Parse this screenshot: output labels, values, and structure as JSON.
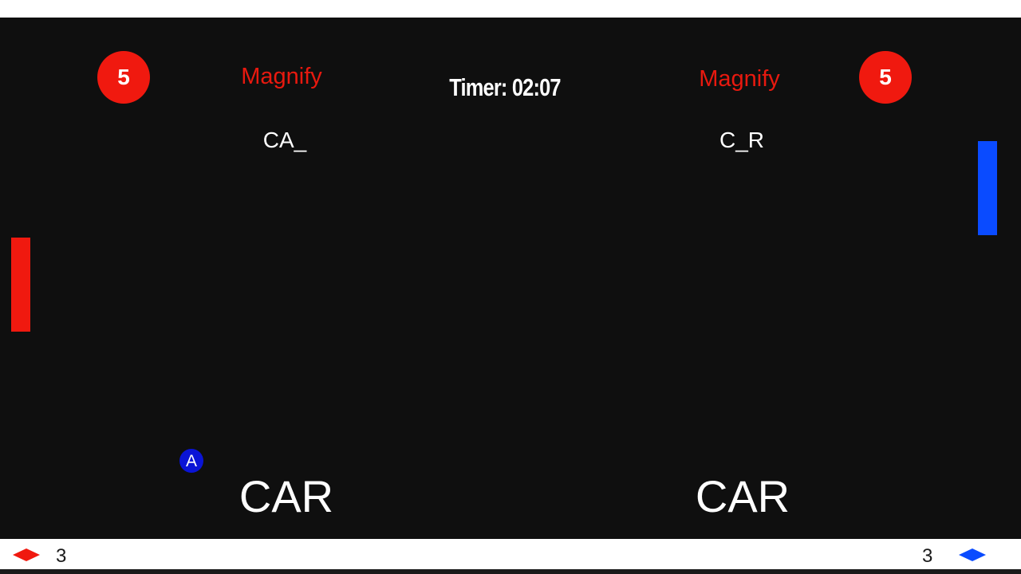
{
  "player_left": {
    "score": "5",
    "powerup": "Magnify",
    "word_progress": "CA_",
    "target_word": "CAR",
    "lives": "3",
    "color": "#f0190f"
  },
  "player_right": {
    "score": "5",
    "powerup": "Magnify",
    "word_progress": "C_R",
    "target_word": "CAR",
    "lives": "3",
    "color": "#0a4bff"
  },
  "timer": {
    "label": "Timer:",
    "value": "02:07"
  },
  "ball": {
    "letter": "A",
    "color": "#0a14d6"
  },
  "icons": {
    "left_life": "red-diamond-icon",
    "right_life": "blue-diamond-icon"
  },
  "colors": {
    "background": "#0f0f0f",
    "accent_red": "#f0190f",
    "accent_blue": "#0a4bff"
  }
}
